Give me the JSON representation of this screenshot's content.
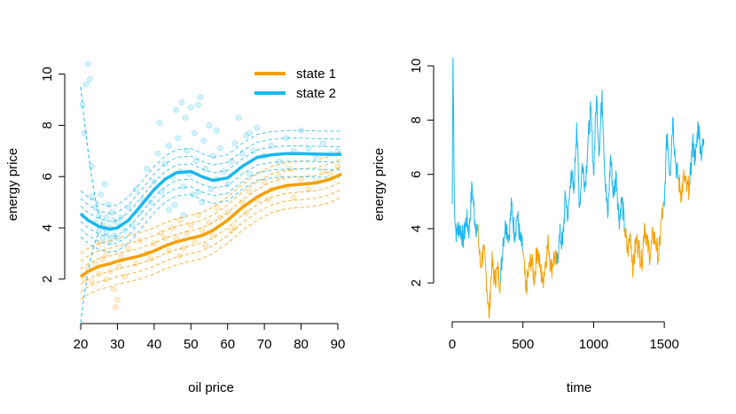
{
  "colors": {
    "state1": "#F5A000",
    "state2": "#1AB8EE"
  },
  "chart_data": [
    {
      "type": "scatter",
      "xlabel": "oil price",
      "ylabel": "energy price",
      "xlim": [
        20,
        92
      ],
      "ylim": [
        0.3,
        10.4
      ],
      "xticks": [
        "20",
        "30",
        "40",
        "50",
        "60",
        "70",
        "80",
        "90"
      ],
      "yticks": [
        "2",
        "4",
        "6",
        "8",
        "10"
      ],
      "legend": {
        "placement": "top-right",
        "entries": [
          "state 1",
          "state 2"
        ]
      },
      "series": [
        {
          "name": "state 1",
          "color": "#F5A000",
          "x": [
            20,
            22,
            25,
            28,
            30,
            33,
            36,
            40,
            43,
            46,
            50,
            53,
            56,
            60,
            64,
            68,
            72,
            76,
            80,
            84,
            88,
            91
          ],
          "values": [
            2.1,
            2.3,
            2.5,
            2.6,
            2.7,
            2.8,
            2.9,
            3.1,
            3.3,
            3.45,
            3.6,
            3.7,
            3.9,
            4.3,
            4.8,
            5.2,
            5.5,
            5.65,
            5.7,
            5.75,
            5.9,
            6.1
          ],
          "band_offsets": [
            -0.9,
            -0.6,
            -0.3,
            0.3,
            0.6,
            0.9
          ]
        },
        {
          "name": "state 2",
          "color": "#1AB8EE",
          "x": [
            20,
            22,
            25,
            28,
            30,
            33,
            36,
            40,
            43,
            46,
            50,
            53,
            56,
            60,
            64,
            68,
            72,
            76,
            80,
            84,
            88,
            91
          ],
          "values": [
            4.55,
            4.3,
            4.05,
            3.95,
            4.0,
            4.3,
            4.8,
            5.5,
            5.9,
            6.15,
            6.2,
            6.0,
            5.85,
            5.95,
            6.4,
            6.75,
            6.85,
            6.9,
            6.9,
            6.88,
            6.87,
            6.87
          ],
          "band_offsets": [
            -0.9,
            -0.6,
            -0.3,
            0.3,
            0.6,
            0.9
          ]
        }
      ],
      "points_state1": [
        [
          21,
          2.0
        ],
        [
          22,
          2.4
        ],
        [
          23,
          1.9
        ],
        [
          24,
          2.6
        ],
        [
          25,
          2.2
        ],
        [
          26,
          2.8
        ],
        [
          27,
          3.0
        ],
        [
          28,
          2.3
        ],
        [
          29,
          1.6
        ],
        [
          29.5,
          0.9
        ],
        [
          30,
          1.2
        ],
        [
          30.5,
          2.5
        ],
        [
          31,
          2.9
        ],
        [
          33,
          3.2
        ],
        [
          35,
          2.6
        ],
        [
          36,
          3.5
        ],
        [
          38,
          3.0
        ],
        [
          40,
          3.4
        ],
        [
          42,
          3.8
        ],
        [
          44,
          3.1
        ],
        [
          45,
          4.0
        ],
        [
          46,
          3.6
        ],
        [
          47,
          4.3
        ],
        [
          48,
          3.2
        ],
        [
          49,
          3.8
        ],
        [
          50,
          4.1
        ],
        [
          51,
          3.5
        ],
        [
          52,
          4.5
        ],
        [
          53,
          3.9
        ],
        [
          54,
          3.3
        ],
        [
          55,
          4.2
        ],
        [
          56,
          3.7
        ],
        [
          58,
          4.4
        ],
        [
          60,
          4.6
        ],
        [
          62,
          4.0
        ],
        [
          64,
          5.0
        ],
        [
          66,
          5.4
        ],
        [
          68,
          5.1
        ],
        [
          70,
          5.8
        ],
        [
          72,
          5.5
        ],
        [
          74,
          6.0
        ],
        [
          76,
          5.6
        ],
        [
          78,
          5.2
        ],
        [
          80,
          5.9
        ],
        [
          82,
          5.5
        ],
        [
          84,
          5.8
        ],
        [
          86,
          6.2
        ],
        [
          88,
          6.1
        ],
        [
          90,
          6.4
        ],
        [
          25,
          3.4
        ],
        [
          27,
          2.0
        ],
        [
          32,
          2.1
        ],
        [
          39,
          2.8
        ],
        [
          43,
          3.6
        ],
        [
          47,
          2.9
        ],
        [
          57,
          4.8
        ],
        [
          61,
          3.9
        ],
        [
          65,
          4.6
        ],
        [
          71,
          5.1
        ],
        [
          77,
          6.3
        ]
      ],
      "points_state2": [
        [
          20.5,
          8.8
        ],
        [
          21,
          7.7
        ],
        [
          21.5,
          9.6
        ],
        [
          22,
          10.4
        ],
        [
          22.5,
          9.8
        ],
        [
          23,
          6.4
        ],
        [
          23,
          5.2
        ],
        [
          24,
          4.8
        ],
        [
          24,
          4.2
        ],
        [
          25,
          4.5
        ],
        [
          25,
          3.9
        ],
        [
          25.5,
          5.3
        ],
        [
          26,
          4.1
        ],
        [
          26,
          3.6
        ],
        [
          26.5,
          5.7
        ],
        [
          27,
          4.4
        ],
        [
          27,
          3.8
        ],
        [
          27.5,
          4.9
        ],
        [
          28,
          4.0
        ],
        [
          28,
          3.5
        ],
        [
          28.5,
          4.6
        ],
        [
          29,
          3.7
        ],
        [
          29,
          4.3
        ],
        [
          30,
          4.2
        ],
        [
          30,
          3.6
        ],
        [
          31,
          4.4
        ],
        [
          32,
          3.9
        ],
        [
          33,
          4.8
        ],
        [
          34,
          4.1
        ],
        [
          35,
          5.5
        ],
        [
          36,
          4.6
        ],
        [
          37,
          5.1
        ],
        [
          38,
          6.3
        ],
        [
          39,
          5.0
        ],
        [
          40,
          5.8
        ],
        [
          41,
          6.9
        ],
        [
          41.5,
          8.1
        ],
        [
          42,
          5.4
        ],
        [
          43,
          6.5
        ],
        [
          44,
          7.2
        ],
        [
          45,
          6.0
        ],
        [
          45.5,
          4.9
        ],
        [
          46,
          8.6
        ],
        [
          46.5,
          7.5
        ],
        [
          47,
          6.2
        ],
        [
          47.5,
          8.9
        ],
        [
          48,
          5.6
        ],
        [
          48.5,
          8.3
        ],
        [
          49,
          7.0
        ],
        [
          49.5,
          6.1
        ],
        [
          50,
          8.7
        ],
        [
          50.5,
          5.3
        ],
        [
          51,
          7.7
        ],
        [
          51.5,
          6.6
        ],
        [
          52,
          8.8
        ],
        [
          52.5,
          9.1
        ],
        [
          53,
          5.0
        ],
        [
          53.5,
          7.4
        ],
        [
          54,
          6.3
        ],
        [
          55,
          8.0
        ],
        [
          55.5,
          5.5
        ],
        [
          56,
          6.8
        ],
        [
          57,
          5.9
        ],
        [
          58,
          7.1
        ],
        [
          59,
          6.2
        ],
        [
          60,
          5.7
        ],
        [
          61,
          6.6
        ],
        [
          62,
          7.3
        ],
        [
          63,
          8.3
        ],
        [
          64,
          6.9
        ],
        [
          65,
          7.6
        ],
        [
          66,
          6.1
        ],
        [
          67,
          7.0
        ],
        [
          68,
          7.9
        ],
        [
          70,
          6.8
        ],
        [
          72,
          7.2
        ],
        [
          74,
          6.6
        ],
        [
          76,
          7.5
        ],
        [
          78,
          7.0
        ],
        [
          80,
          7.8
        ],
        [
          82,
          7.1
        ],
        [
          84,
          6.8
        ],
        [
          86,
          7.3
        ],
        [
          88,
          6.9
        ],
        [
          90,
          7.0
        ],
        [
          44,
          4.7
        ],
        [
          48,
          4.5
        ],
        [
          52,
          5.4
        ],
        [
          57,
          7.8
        ],
        [
          66,
          7.7
        ]
      ],
      "fringe_state2": [
        [
          20,
          9.5
        ],
        [
          21,
          8.2
        ],
        [
          22,
          7.0
        ],
        [
          23,
          6.0
        ],
        [
          24,
          5.1
        ],
        [
          25,
          4.5
        ],
        [
          26,
          4.0
        ],
        [
          27,
          3.7
        ]
      ],
      "fringe_state2_low": [
        [
          20,
          0.3
        ],
        [
          21,
          1.4
        ],
        [
          22,
          2.3
        ],
        [
          23,
          3.0
        ],
        [
          24,
          3.5
        ],
        [
          25,
          3.8
        ]
      ]
    },
    {
      "type": "line",
      "xlabel": "time",
      "ylabel": "energy price",
      "xlim": [
        0,
        1800
      ],
      "ylim": [
        0.6,
        10.4
      ],
      "xticks": [
        "0",
        "500",
        "1000",
        "1500"
      ],
      "yticks": [
        "2",
        "4",
        "6",
        "8",
        "10"
      ],
      "series": [
        {
          "name": "state 2",
          "color": "#1AB8EE",
          "x": [
            0,
            5,
            10,
            15,
            20,
            30,
            50,
            80,
            100,
            120,
            140,
            160,
            180
          ],
          "values": [
            4.9,
            10.3,
            8.0,
            5.0,
            4.2,
            3.8,
            4.1,
            3.6,
            4.4,
            3.9,
            5.6,
            4.3,
            3.9
          ]
        },
        {
          "name": "state 1",
          "color": "#F5A000",
          "x": [
            180,
            200,
            220,
            240,
            260,
            280,
            300,
            320,
            340
          ],
          "values": [
            3.9,
            2.6,
            3.2,
            2.3,
            0.7,
            2.8,
            2.1,
            2.5,
            2.0
          ]
        },
        {
          "name": "state 2",
          "color": "#1AB8EE",
          "x": [
            340,
            360,
            380,
            400,
            420,
            440,
            460,
            480,
            500
          ],
          "values": [
            2.0,
            3.6,
            4.2,
            3.7,
            4.9,
            3.8,
            4.5,
            3.6,
            3.2
          ]
        },
        {
          "name": "state 1",
          "color": "#F5A000",
          "x": [
            500,
            520,
            540,
            560,
            580,
            600,
            620,
            640,
            660,
            680,
            700,
            720,
            740
          ],
          "values": [
            3.2,
            1.7,
            2.4,
            2.9,
            2.1,
            3.3,
            2.6,
            2.0,
            2.8,
            3.5,
            2.5,
            3.0,
            2.7
          ]
        },
        {
          "name": "state 2",
          "color": "#1AB8EE",
          "x": [
            740,
            760,
            780,
            800,
            820,
            840,
            860,
            880,
            900,
            920,
            940,
            960,
            980,
            1000,
            1020,
            1040,
            1060,
            1080,
            1100,
            1120,
            1140,
            1160,
            1180,
            1200,
            1220
          ],
          "values": [
            2.7,
            3.8,
            3.4,
            5.2,
            4.4,
            6.1,
            5.3,
            7.9,
            4.8,
            6.4,
            5.6,
            7.2,
            8.4,
            6.0,
            8.9,
            6.8,
            9.1,
            5.9,
            4.4,
            6.7,
            5.2,
            6.0,
            4.3,
            5.1,
            4.0
          ]
        },
        {
          "name": "state 1",
          "color": "#F5A000",
          "x": [
            1220,
            1240,
            1260,
            1280,
            1300,
            1320,
            1340,
            1360,
            1380,
            1400,
            1420,
            1440,
            1460,
            1480,
            1500
          ],
          "values": [
            4.0,
            3.1,
            3.8,
            2.5,
            3.6,
            3.3,
            2.7,
            4.2,
            3.4,
            3.0,
            3.8,
            3.5,
            2.9,
            4.4,
            4.8
          ]
        },
        {
          "name": "state 2",
          "color": "#1AB8EE",
          "x": [
            1500,
            1510,
            1520,
            1540,
            1560,
            1580,
            1600
          ],
          "values": [
            4.8,
            6.5,
            7.5,
            6.0,
            8.1,
            6.4,
            5.8
          ]
        },
        {
          "name": "state 1",
          "color": "#F5A000",
          "x": [
            1600,
            1620,
            1640,
            1660,
            1680
          ],
          "values": [
            5.8,
            5.3,
            5.9,
            5.4,
            5.6
          ]
        },
        {
          "name": "state 2",
          "color": "#1AB8EE",
          "x": [
            1680,
            1700,
            1720,
            1740,
            1760,
            1780
          ],
          "values": [
            5.6,
            7.2,
            6.5,
            7.9,
            6.8,
            7.1
          ]
        }
      ]
    }
  ]
}
